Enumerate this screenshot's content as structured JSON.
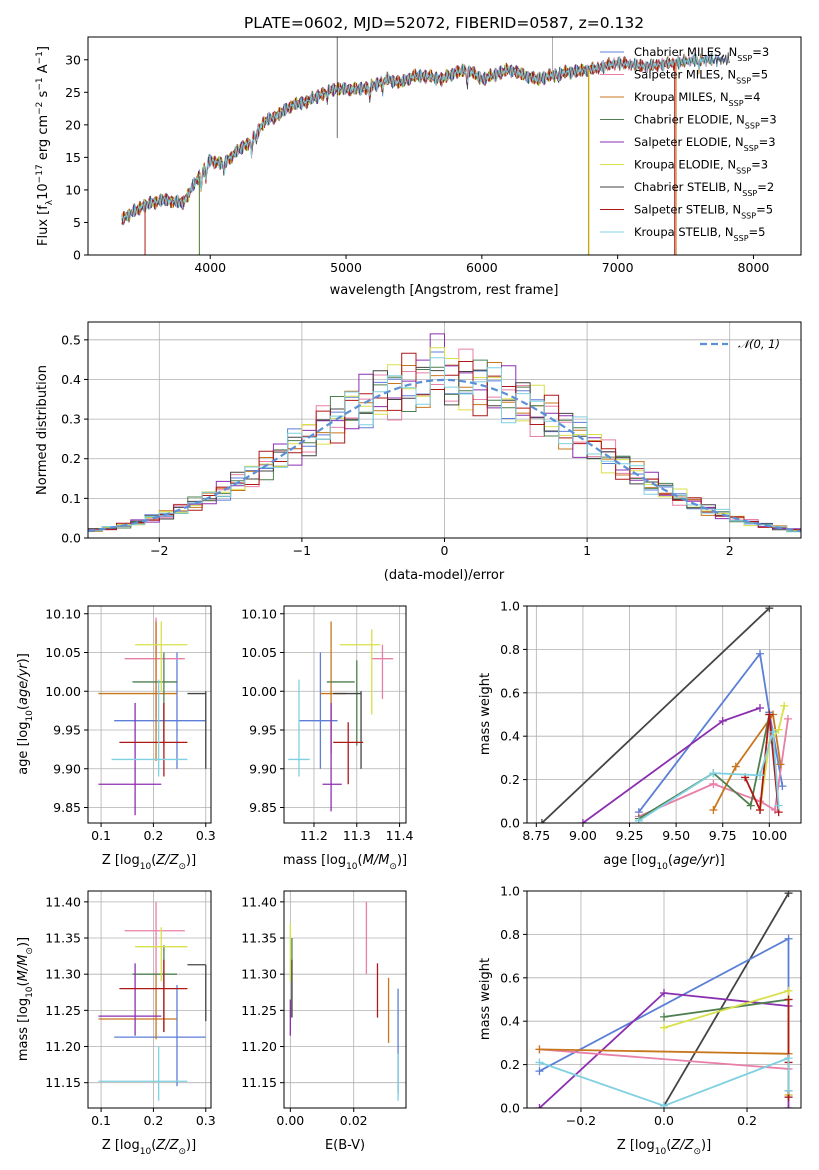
{
  "chart_data": [
    {
      "id": "spectrum",
      "type": "line",
      "title": "PLATE=0602, MJD=52072, FIBERID=0587, z=0.132",
      "xlabel": "wavelength [Angstrom, rest frame]",
      "ylabel": "Flux [fλ10⁻¹⁷ erg cm⁻² s⁻¹ A⁻¹]",
      "xlim": [
        3100,
        8350
      ],
      "ylim": [
        0,
        33.5
      ],
      "xticks": [
        4000,
        5000,
        6000,
        7000,
        8000
      ],
      "yticks": [
        0,
        5,
        10,
        15,
        20,
        25,
        30
      ],
      "grid": false,
      "legend_position": "top-right",
      "continuum": {
        "x": [
          3350,
          3500,
          3650,
          3800,
          3900,
          4000,
          4100,
          4200,
          4300,
          4400,
          4500,
          4600,
          4700,
          4800,
          4900,
          5000,
          5100,
          5200,
          5300,
          5400,
          5500,
          5600,
          5700,
          5800,
          5900,
          6000,
          6200,
          6400,
          6600,
          6800,
          7000,
          7200,
          7400,
          7600
        ],
        "y": [
          5.5,
          7.5,
          8.5,
          8.0,
          11.5,
          14.5,
          14.0,
          16.0,
          17.5,
          20.5,
          21.5,
          23.0,
          23.5,
          24.5,
          25.5,
          25.5,
          25.5,
          26.0,
          27.0,
          26.5,
          27.5,
          27.5,
          27.0,
          28.0,
          28.5,
          27.0,
          28.5,
          27.0,
          28.0,
          28.5,
          29.5,
          29.0,
          29.5,
          30.0
        ]
      },
      "series": [
        {
          "name": "Chabrier MILES, N_SSP=3",
          "label_main": "Chabrier MILES, N",
          "label_sub": "SSP",
          "label_tail": "=3",
          "color": "#5b7fd6",
          "end_x": 7800
        },
        {
          "name": "Salpeter MILES, N_SSP=5",
          "label_main": "Salpeter MILES, N",
          "label_sub": "SSP",
          "label_tail": "=5",
          "color": "#e87fa8",
          "end_x": 7700
        },
        {
          "name": "Kroupa MILES, N_SSP=4",
          "label_main": "Kroupa MILES, N",
          "label_sub": "SSP",
          "label_tail": "=4",
          "color": "#c8761e",
          "end_x": 7700
        },
        {
          "name": "Chabrier ELODIE, N_SSP=3",
          "label_main": "Chabrier ELODIE, N",
          "label_sub": "SSP",
          "label_tail": "=3",
          "color": "#4f7f4f",
          "end_x": 6780
        },
        {
          "name": "Salpeter ELODIE, N_SSP=3",
          "label_main": "Salpeter ELODIE, N",
          "label_sub": "SSP",
          "label_tail": "=3",
          "color": "#8b2fb0",
          "end_x": 6780
        },
        {
          "name": "Kroupa ELODIE, N_SSP=3",
          "label_main": "Kroupa ELODIE, N",
          "label_sub": "SSP",
          "label_tail": "=3",
          "color": "#d8e04a",
          "end_x": 6780
        },
        {
          "name": "Chabrier STELIB, N_SSP=2",
          "label_main": "Chabrier STELIB, N",
          "label_sub": "SSP",
          "label_tail": "=2",
          "color": "#444444",
          "end_x": 7830
        },
        {
          "name": "Salpeter STELIB, N_SSP=5",
          "label_main": "Salpeter STELIB, N",
          "label_sub": "SSP",
          "label_tail": "=5",
          "color": "#b01818",
          "end_x": 7420
        },
        {
          "name": "Kroupa STELIB, N_SSP=5",
          "label_main": "Kroupa STELIB, N",
          "label_sub": "SSP",
          "label_tail": "=5",
          "color": "#7fd0e0",
          "end_x": 7700
        }
      ]
    },
    {
      "id": "residuals",
      "type": "histogram",
      "xlabel": "(data-model)/error",
      "ylabel": "Normed distribution",
      "xlim": [
        -2.5,
        2.5
      ],
      "ylim": [
        0,
        0.545
      ],
      "xticks": [
        -2,
        -1,
        0,
        1,
        2
      ],
      "yticks": [
        0.0,
        0.1,
        0.2,
        0.3,
        0.4,
        0.5
      ],
      "grid": true,
      "legend_position": "top-right",
      "legend_label": "𝒩(0, 1)",
      "reference_curve": {
        "name": "N(0,1)",
        "mean": 0,
        "sigma": 1,
        "color": "#5b8fd6",
        "style": "dashed"
      },
      "bin_width": 0.1,
      "bin_start": -2.5
    },
    {
      "id": "age_vs_Z",
      "type": "errorbar",
      "xlabel": "Z [log10(Z/Z⊙)]",
      "ylabel": "age [log10(age/yr)]",
      "xlim": [
        0.075,
        0.31
      ],
      "ylim": [
        9.83,
        10.11
      ],
      "xticks": [
        0.1,
        0.2,
        0.3
      ],
      "yticks": [
        9.85,
        9.9,
        9.95,
        10.0,
        10.05,
        10.1
      ],
      "grid": true,
      "points": [
        {
          "color": "#5b7fd6",
          "x": 0.245,
          "xerr": [
            0.125,
            0.3
          ],
          "y": 9.962,
          "yerr": [
            9.9,
            10.05
          ]
        },
        {
          "color": "#e87fa8",
          "x": 0.205,
          "xerr": [
            0.145,
            0.26
          ],
          "y": 10.042,
          "yerr": [
            9.965,
            10.095
          ]
        },
        {
          "color": "#c8761e",
          "x": 0.205,
          "xerr": [
            0.095,
            0.245
          ],
          "y": 9.997,
          "yerr": [
            9.91,
            10.09
          ]
        },
        {
          "color": "#4f7f4f",
          "x": 0.22,
          "xerr": [
            0.16,
            0.245
          ],
          "y": 10.012,
          "yerr": [
            9.93,
            10.05
          ]
        },
        {
          "color": "#8b2fb0",
          "x": 0.165,
          "xerr": [
            0.095,
            0.215
          ],
          "y": 9.88,
          "yerr": [
            9.84,
            9.985
          ]
        },
        {
          "color": "#d8e04a",
          "x": 0.215,
          "xerr": [
            0.165,
            0.265
          ],
          "y": 10.06,
          "yerr": [
            10.0,
            10.09
          ]
        },
        {
          "color": "#444444",
          "x": 0.3,
          "xerr": [
            0.265,
            0.3
          ],
          "y": 9.997,
          "yerr": [
            9.9,
            10.0
          ]
        },
        {
          "color": "#b01818",
          "x": 0.22,
          "xerr": [
            0.135,
            0.265
          ],
          "y": 9.934,
          "yerr": [
            9.89,
            9.985
          ]
        },
        {
          "color": "#7fd0e0",
          "x": 0.21,
          "xerr": [
            0.12,
            0.265
          ],
          "y": 9.912,
          "yerr": [
            9.89,
            10.015
          ]
        }
      ]
    },
    {
      "id": "age_vs_mass",
      "type": "errorbar",
      "xlabel": "mass [log10(M/M⊙)]",
      "ylabel": "",
      "xlim": [
        11.13,
        11.415
      ],
      "ylim": [
        9.83,
        10.11
      ],
      "xticks": [
        11.2,
        11.3,
        11.4
      ],
      "yticks": [
        9.85,
        9.9,
        9.95,
        10.0,
        10.05,
        10.1
      ],
      "grid": true,
      "points": [
        {
          "color": "#5b7fd6",
          "x": 11.215,
          "xerr": [
            11.165,
            11.255
          ],
          "y": 9.962,
          "yerr": [
            9.9,
            10.05
          ]
        },
        {
          "color": "#e87fa8",
          "x": 11.36,
          "xerr": [
            11.335,
            11.385
          ],
          "y": 10.042,
          "yerr": [
            9.99,
            10.06
          ]
        },
        {
          "color": "#c8761e",
          "x": 11.24,
          "xerr": [
            11.215,
            11.275
          ],
          "y": 9.997,
          "yerr": [
            9.92,
            10.09
          ]
        },
        {
          "color": "#4f7f4f",
          "x": 11.3,
          "xerr": [
            11.23,
            11.295
          ],
          "y": 10.012,
          "yerr": [
            9.93,
            10.04
          ]
        },
        {
          "color": "#8b2fb0",
          "x": 11.24,
          "xerr": [
            11.22,
            11.265
          ],
          "y": 9.88,
          "yerr": [
            9.845,
            9.985
          ]
        },
        {
          "color": "#d8e04a",
          "x": 11.335,
          "xerr": [
            11.26,
            11.355
          ],
          "y": 10.06,
          "yerr": [
            9.97,
            10.08
          ]
        },
        {
          "color": "#444444",
          "x": 11.31,
          "xerr": [
            11.245,
            11.31
          ],
          "y": 9.997,
          "yerr": [
            9.9,
            10.0
          ]
        },
        {
          "color": "#b01818",
          "x": 11.28,
          "xerr": [
            11.245,
            11.315
          ],
          "y": 9.934,
          "yerr": [
            9.88,
            9.96
          ]
        },
        {
          "color": "#7fd0e0",
          "x": 11.165,
          "xerr": [
            11.14,
            11.19
          ],
          "y": 9.912,
          "yerr": [
            9.89,
            10.015
          ]
        }
      ]
    },
    {
      "id": "weight_vs_age",
      "type": "line",
      "xlabel": "age [log10(age/yr)]",
      "ylabel": "mass weight",
      "xlim": [
        8.7,
        10.17
      ],
      "ylim": [
        0,
        1.0
      ],
      "xticks": [
        8.75,
        9.0,
        9.25,
        9.5,
        9.75,
        10.0
      ],
      "yticks": [
        0.0,
        0.2,
        0.4,
        0.6,
        0.8,
        1.0
      ],
      "grid": true,
      "series": [
        {
          "color": "#444444",
          "x": [
            8.78,
            10.0
          ],
          "y": [
            0.0,
            0.99
          ]
        },
        {
          "color": "#5b7fd6",
          "x": [
            9.3,
            9.95,
            10.0,
            10.07
          ],
          "y": [
            0.05,
            0.78,
            0.51,
            0.17
          ]
        },
        {
          "color": "#8b2fb0",
          "x": [
            9.0,
            9.75,
            9.95
          ],
          "y": [
            0.0,
            0.47,
            0.53
          ]
        },
        {
          "color": "#e87fa8",
          "x": [
            9.3,
            9.7,
            9.95,
            10.03,
            10.1
          ],
          "y": [
            0.03,
            0.18,
            0.1,
            0.06,
            0.48
          ]
        },
        {
          "color": "#c8761e",
          "x": [
            9.7,
            9.82,
            10.02,
            10.06
          ],
          "y": [
            0.06,
            0.26,
            0.5,
            0.27
          ]
        },
        {
          "color": "#4f7f4f",
          "x": [
            9.3,
            9.7,
            9.9,
            10.0
          ],
          "y": [
            0.02,
            0.23,
            0.08,
            0.5
          ]
        },
        {
          "color": "#d8e04a",
          "x": [
            9.95,
            10.0,
            10.05,
            10.08
          ],
          "y": [
            0.06,
            0.37,
            0.43,
            0.54
          ]
        },
        {
          "color": "#b01818",
          "x": [
            9.87,
            9.95,
            10.0,
            10.05
          ],
          "y": [
            0.21,
            0.06,
            0.5,
            0.05
          ]
        },
        {
          "color": "#7fd0e0",
          "x": [
            9.3,
            9.7,
            9.95,
            10.02,
            10.05
          ],
          "y": [
            0.01,
            0.23,
            0.22,
            0.42,
            0.08
          ]
        }
      ]
    },
    {
      "id": "mass_vs_Z",
      "type": "errorbar",
      "xlabel": "Z [log10(Z/Z⊙)]",
      "ylabel": "mass [log10(M/M⊙)]",
      "xlim": [
        0.075,
        0.31
      ],
      "ylim": [
        11.115,
        11.415
      ],
      "xticks": [
        0.1,
        0.2,
        0.3
      ],
      "yticks": [
        11.15,
        11.2,
        11.25,
        11.3,
        11.35,
        11.4
      ],
      "grid": true,
      "points": [
        {
          "color": "#5b7fd6",
          "x": 0.245,
          "xerr": [
            0.125,
            0.3
          ],
          "y": 11.213,
          "yerr": [
            11.145,
            11.285
          ]
        },
        {
          "color": "#e87fa8",
          "x": 0.205,
          "xerr": [
            0.145,
            0.26
          ],
          "y": 11.36,
          "yerr": [
            11.3,
            11.4
          ]
        },
        {
          "color": "#c8761e",
          "x": 0.205,
          "xerr": [
            0.095,
            0.245
          ],
          "y": 11.238,
          "yerr": [
            11.21,
            11.3
          ]
        },
        {
          "color": "#4f7f4f",
          "x": 0.22,
          "xerr": [
            0.16,
            0.245
          ],
          "y": 11.3,
          "yerr": [
            11.22,
            11.34
          ]
        },
        {
          "color": "#8b2fb0",
          "x": 0.165,
          "xerr": [
            0.095,
            0.215
          ],
          "y": 11.242,
          "yerr": [
            11.215,
            11.315
          ]
        },
        {
          "color": "#d8e04a",
          "x": 0.215,
          "xerr": [
            0.165,
            0.265
          ],
          "y": 11.338,
          "yerr": [
            11.29,
            11.365
          ]
        },
        {
          "color": "#444444",
          "x": 0.3,
          "xerr": [
            0.265,
            0.3
          ],
          "y": 11.313,
          "yerr": [
            11.235,
            11.313
          ]
        },
        {
          "color": "#b01818",
          "x": 0.22,
          "xerr": [
            0.135,
            0.265
          ],
          "y": 11.28,
          "yerr": [
            11.22,
            11.32
          ]
        },
        {
          "color": "#7fd0e0",
          "x": 0.21,
          "xerr": [
            0.095,
            0.265
          ],
          "y": 11.152,
          "yerr": [
            11.125,
            11.2
          ]
        }
      ]
    },
    {
      "id": "mass_vs_EBV",
      "type": "errorbar",
      "xlabel": "E(B-V)",
      "ylabel": "",
      "xlim": [
        -0.002,
        0.0365
      ],
      "ylim": [
        11.115,
        11.415
      ],
      "xticks": [
        0.0,
        0.02
      ],
      "yticks": [
        11.15,
        11.2,
        11.25,
        11.3,
        11.35,
        11.4
      ],
      "grid": true,
      "points": [
        {
          "color": "#5b7fd6",
          "x": 0.034,
          "y": 11.21,
          "yerr": [
            11.135,
            11.28
          ]
        },
        {
          "color": "#e87fa8",
          "x": 0.024,
          "y": 11.345,
          "yerr": [
            11.3,
            11.4
          ]
        },
        {
          "color": "#c8761e",
          "x": 0.031,
          "y": 11.25,
          "yerr": [
            11.205,
            11.295
          ]
        },
        {
          "color": "#4f7f4f",
          "x": 0.0005,
          "y": 11.3,
          "yerr": [
            11.24,
            11.35
          ]
        },
        {
          "color": "#8b2fb0",
          "x": 0.0,
          "y": 11.24,
          "yerr": [
            11.215,
            11.265
          ]
        },
        {
          "color": "#d8e04a",
          "x": 0.0,
          "y": 11.33,
          "yerr": [
            11.29,
            11.37
          ]
        },
        {
          "color": "#444444",
          "x": 0.0005,
          "y": 11.28,
          "yerr": [
            11.24,
            11.32
          ]
        },
        {
          "color": "#b01818",
          "x": 0.0275,
          "y": 11.28,
          "yerr": [
            11.24,
            11.315
          ]
        },
        {
          "color": "#7fd0e0",
          "x": 0.034,
          "y": 11.15,
          "yerr": [
            11.125,
            11.19
          ]
        }
      ]
    },
    {
      "id": "weight_vs_Z",
      "type": "line",
      "xlabel": "Z [log10(Z/Z⊙)]",
      "ylabel": "mass weight",
      "xlim": [
        -0.33,
        0.33
      ],
      "ylim": [
        0,
        1.0
      ],
      "xticks": [
        -0.2,
        0.0,
        0.2
      ],
      "yticks": [
        0.0,
        0.2,
        0.4,
        0.6,
        0.8,
        1.0
      ],
      "grid": true,
      "series": [
        {
          "color": "#444444",
          "x": [
            0.0,
            0.3
          ],
          "y": [
            0.01,
            0.99
          ]
        },
        {
          "color": "#5b7fd6",
          "x": [
            -0.3,
            0.3,
            0.3
          ],
          "y": [
            0.17,
            0.78,
            0.05
          ]
        },
        {
          "color": "#8b2fb0",
          "x": [
            -0.3,
            0.0,
            0.3,
            0.3
          ],
          "y": [
            0.0,
            0.53,
            0.47,
            0.0
          ]
        },
        {
          "color": "#e87fa8",
          "x": [
            -0.3,
            0.3,
            0.3
          ],
          "y": [
            0.27,
            0.18,
            0.06
          ]
        },
        {
          "color": "#c8761e",
          "x": [
            -0.3,
            0.3,
            0.3
          ],
          "y": [
            0.27,
            0.25,
            0.06
          ]
        },
        {
          "color": "#4f7f4f",
          "x": [
            0.0,
            0.3,
            0.3
          ],
          "y": [
            0.42,
            0.5,
            0.08
          ]
        },
        {
          "color": "#d8e04a",
          "x": [
            0.0,
            0.3,
            0.3
          ],
          "y": [
            0.37,
            0.54,
            0.06
          ]
        },
        {
          "color": "#b01818",
          "x": [
            0.3,
            0.3,
            0.3
          ],
          "y": [
            0.5,
            0.05,
            0.21
          ]
        },
        {
          "color": "#7fd0e0",
          "x": [
            -0.3,
            0.0,
            0.3,
            0.3
          ],
          "y": [
            0.21,
            0.01,
            0.23,
            0.08
          ]
        }
      ]
    }
  ]
}
